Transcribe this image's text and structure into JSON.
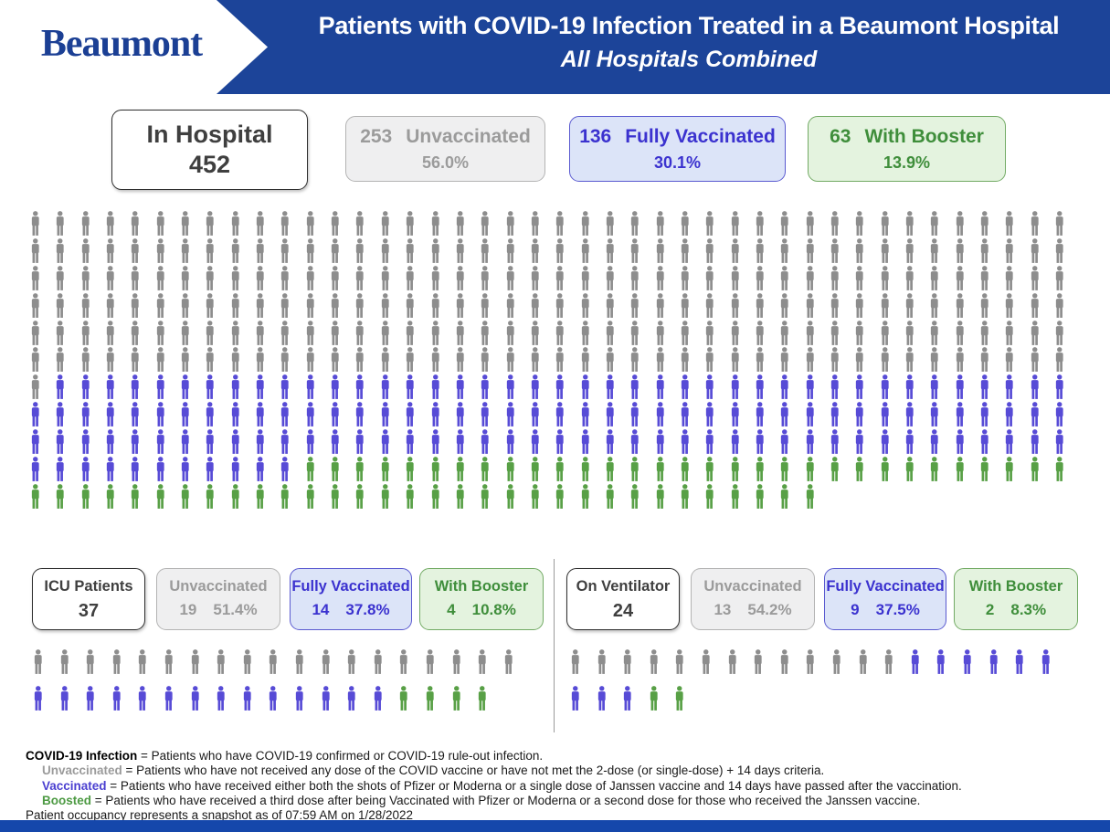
{
  "header": {
    "logo": "Beaumont",
    "title": "Patients with COVID-19 Infection Treated in a Beaumont Hospital",
    "subtitle": "All Hospitals Combined"
  },
  "colors": {
    "header_blue": "#1c4499",
    "bottom_bar_blue": "#1547ab",
    "unvaccinated_icon": "#8d8d8d",
    "vaccinated_icon": "#574bd6",
    "boosted_icon": "#58a046"
  },
  "summary": {
    "total": {
      "label": "In Hospital",
      "value": "452"
    },
    "groups": [
      {
        "count": "253",
        "label": "Unvaccinated",
        "percent": "56.0%"
      },
      {
        "count": "136",
        "label": "Fully Vaccinated",
        "percent": "30.1%"
      },
      {
        "count": "63",
        "label": "With Booster",
        "percent": "13.9%"
      }
    ]
  },
  "icu": {
    "total": {
      "label": "ICU Patients",
      "value": "37"
    },
    "groups": [
      {
        "label": "Unvaccinated",
        "count": "19",
        "percent": "51.4%"
      },
      {
        "label": "Fully Vaccinated",
        "count": "14",
        "percent": "37.8%"
      },
      {
        "label": "With Booster",
        "count": "4",
        "percent": "10.8%"
      }
    ]
  },
  "ventilator": {
    "total": {
      "label": "On Ventilator",
      "value": "24"
    },
    "groups": [
      {
        "label": "Unvaccinated",
        "count": "13",
        "percent": "54.2%"
      },
      {
        "label": "Fully Vaccinated",
        "count": "9",
        "percent": "37.5%"
      },
      {
        "label": "With Booster",
        "count": "2",
        "percent": "8.3%"
      }
    ]
  },
  "chart_data": [
    {
      "type": "pictogram",
      "title": "In Hospital",
      "total": 452,
      "per_row": 42,
      "unit": "1 icon = 1 patient",
      "series": [
        {
          "name": "Unvaccinated",
          "value": 253,
          "percent": "56.0%",
          "color": "#8d8d8d"
        },
        {
          "name": "Fully Vaccinated",
          "value": 136,
          "percent": "30.1%",
          "color": "#574bd6"
        },
        {
          "name": "With Booster",
          "value": 63,
          "percent": "13.9%",
          "color": "#58a046"
        }
      ]
    },
    {
      "type": "pictogram",
      "title": "ICU Patients",
      "total": 37,
      "per_row": 19,
      "unit": "1 icon = 1 patient",
      "series": [
        {
          "name": "Unvaccinated",
          "value": 19,
          "percent": "51.4%",
          "color": "#8d8d8d"
        },
        {
          "name": "Fully Vaccinated",
          "value": 14,
          "percent": "37.8%",
          "color": "#574bd6"
        },
        {
          "name": "With Booster",
          "value": 4,
          "percent": "10.8%",
          "color": "#58a046"
        }
      ]
    },
    {
      "type": "pictogram",
      "title": "On Ventilator",
      "total": 24,
      "per_row": 19,
      "unit": "1 icon = 1 patient",
      "series": [
        {
          "name": "Unvaccinated",
          "value": 13,
          "percent": "54.2%",
          "color": "#8d8d8d"
        },
        {
          "name": "Fully Vaccinated",
          "value": 9,
          "percent": "37.5%",
          "color": "#574bd6"
        },
        {
          "name": "With Booster",
          "value": 2,
          "percent": "8.3%",
          "color": "#58a046"
        }
      ]
    }
  ],
  "footnotes": {
    "definitions": [
      {
        "lead": "COVID-19 Infection",
        "rest": " = Patients who have COVID-19 confirmed or COVID-19 rule-out infection."
      },
      {
        "lead": "Unvaccinated",
        "rest": " = Patients who have not received any dose of the COVID vaccine or have not met the 2-dose (or single-dose) + 14 days criteria."
      },
      {
        "lead": "Vaccinated",
        "rest": " = Patients who have received either both the shots of Pfizer or Moderna or a single dose of Janssen vaccine and 14 days have passed after the vaccination."
      },
      {
        "lead": "Boosted",
        "rest": " = Patients who have received a third dose after being Vaccinated with Pfizer or Moderna or a second dose for those who received the Janssen vaccine."
      }
    ],
    "snapshot": "Patient occupancy represents a snapshot as of 07:59 AM on 1/28/2022"
  }
}
